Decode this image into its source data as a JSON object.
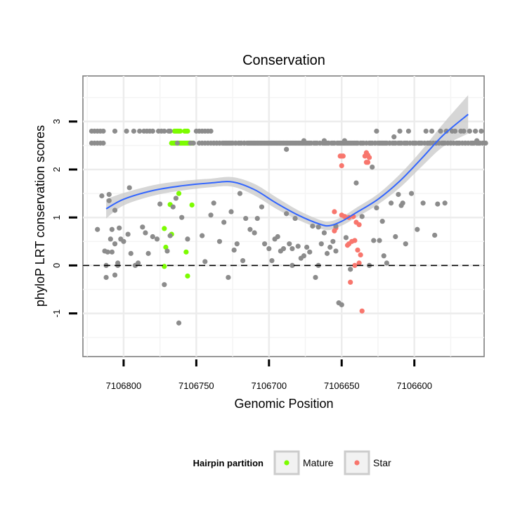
{
  "chart_data": {
    "type": "scatter",
    "title": "Conservation",
    "xlabel": "Genomic Position",
    "ylabel": "phyloP LRT conservation scores",
    "x_reversed": true,
    "xlim": [
      7106828,
      7106552
    ],
    "ylim": [
      -1.9,
      3.95
    ],
    "x_ticks": [
      7106800,
      7106750,
      7106700,
      7106650,
      7106600
    ],
    "y_ticks": [
      -1,
      0,
      1,
      2,
      3
    ],
    "y_tick_labels": [
      "-1",
      "0",
      "1",
      "2",
      "3"
    ],
    "grid": true,
    "reference_line": {
      "y": 0,
      "style": "dashed"
    },
    "legend": {
      "title": "Hairpin partition",
      "position": "bottom",
      "entries": [
        {
          "label": "Mature",
          "color": "#7CFC00"
        },
        {
          "label": "Star",
          "color": "#F8766D"
        }
      ]
    },
    "colors": {
      "other": "#8C8C8C",
      "mature": "#7CFC00",
      "star": "#F8766D",
      "smooth": "#3366FF",
      "ribbon": "#CCCCCC"
    },
    "smooth_line": {
      "x": [
        7106812,
        7106800,
        7106780,
        7106760,
        7106740,
        7106725,
        7106710,
        7106695,
        7106680,
        7106665,
        7106658,
        7106650,
        7106640,
        7106625,
        7106610,
        7106595,
        7106580,
        7106563
      ],
      "y": [
        1.18,
        1.38,
        1.56,
        1.66,
        1.72,
        1.74,
        1.58,
        1.3,
        1.05,
        0.86,
        0.83,
        0.92,
        1.1,
        1.38,
        1.76,
        2.23,
        2.72,
        3.15
      ],
      "lower": [
        0.98,
        1.25,
        1.45,
        1.56,
        1.63,
        1.64,
        1.46,
        1.18,
        0.95,
        0.77,
        0.74,
        0.83,
        1.0,
        1.27,
        1.62,
        2.06,
        2.48,
        2.75
      ],
      "upper": [
        1.38,
        1.51,
        1.67,
        1.76,
        1.81,
        1.84,
        1.7,
        1.42,
        1.15,
        0.95,
        0.92,
        1.01,
        1.2,
        1.49,
        1.9,
        2.4,
        2.96,
        3.55
      ]
    },
    "series": [
      {
        "name": "Mature",
        "x": [
          7106765,
          7106764,
          7106763,
          7106762,
          7106761,
          7106767,
          7106766,
          7106765,
          7106764,
          7106763,
          7106762,
          7106761,
          7106760,
          7106759,
          7106758,
          7106757,
          7106756,
          7106755,
          7106754,
          7106753,
          7106758,
          7106757,
          7106756,
          7106762,
          7106768,
          7106753,
          7106772,
          7106767,
          7106771,
          7106757,
          7106772,
          7106756
        ],
        "y": [
          2.8,
          2.8,
          2.8,
          2.8,
          2.8,
          2.55,
          2.55,
          2.55,
          2.55,
          2.55,
          2.55,
          2.55,
          2.55,
          2.55,
          2.55,
          2.55,
          2.55,
          2.55,
          2.55,
          2.55,
          2.8,
          2.8,
          2.8,
          1.5,
          1.27,
          1.26,
          0.77,
          0.65,
          0.38,
          0.28,
          -0.02,
          -0.22
        ]
      },
      {
        "name": "Star",
        "x": [
          7106651,
          7106650,
          7106649,
          7106650,
          7106633,
          7106632,
          7106634,
          7106631,
          7106633,
          7106632,
          7106655,
          7106650,
          7106648,
          7106645,
          7106642,
          7106640,
          7106638,
          7106641,
          7106643,
          7106645,
          7106646,
          7106639,
          7106637,
          7106654,
          7106655,
          7106638,
          7106644,
          7106641,
          7106636
        ],
        "y": [
          2.28,
          2.28,
          2.28,
          2.08,
          2.35,
          2.3,
          2.28,
          2.25,
          2.15,
          2.15,
          1.12,
          1.05,
          1.02,
          1.0,
          1.02,
          0.9,
          0.85,
          0.52,
          0.5,
          0.45,
          0.42,
          0.32,
          0.22,
          0.78,
          0.72,
          0.05,
          -0.35,
          0.0,
          -0.95
        ]
      },
      {
        "name": "",
        "x": [
          7106812,
          7106810,
          7106808,
          7106806,
          7106804,
          7106812,
          7106810,
          7106808,
          7106806,
          7106804,
          7106802,
          7106796,
          7106772,
          7106770,
          7106768,
          7106766,
          7106764,
          7106762,
          7106760,
          7106756,
          7106754,
          7106752,
          7106748,
          7106746,
          7106744,
          7106742,
          7106740,
          7106738,
          7106736,
          7106734,
          7106731,
          7106729,
          7106727,
          7106725,
          7106723,
          7106721,
          7106719,
          7106717,
          7106715,
          7106713,
          7106711,
          7106709,
          7106707,
          7106705,
          7106703,
          7106701,
          7106699,
          7106697,
          7106695,
          7106693,
          7106691,
          7106689,
          7106687,
          7106685,
          7106683,
          7106681,
          7106679,
          7106677,
          7106675,
          7106673,
          7106671,
          7106669,
          7106667,
          7106665,
          7106663,
          7106661,
          7106659,
          7106657,
          7106655,
          7106653,
          7106651,
          7106649,
          7106647,
          7106645,
          7106643,
          7106641,
          7106639,
          7106637,
          7106635,
          7106633,
          7106631,
          7106629,
          7106627,
          7106625,
          7106623,
          7106621,
          7106619,
          7106617,
          7106615,
          7106613,
          7106611,
          7106609,
          7106607,
          7106605,
          7106603,
          7106601,
          7106599,
          7106597,
          7106595,
          7106593,
          7106591,
          7106589,
          7106587,
          7106585,
          7106583,
          7106581,
          7106579,
          7106577,
          7106575,
          7106573,
          7106571,
          7106569,
          7106567,
          7106565,
          7106563,
          7106561,
          7106559,
          7106557,
          7106555,
          7106553,
          7106551
        ],
        "y": [
          0.0,
          1.48,
          0.28,
          0.45,
          0.05,
          -0.25,
          1.35,
          0.75,
          -0.2,
          0.0,
          0.55,
          1.62,
          -0.4,
          0.3,
          0.62,
          1.22,
          1.4,
          -1.2,
          1.0,
          0.55,
          2.55,
          2.55,
          2.55,
          2.55,
          2.55,
          2.55,
          2.55,
          2.55,
          2.55,
          2.55,
          2.55,
          2.55,
          2.55,
          2.55,
          2.55,
          2.55,
          2.55,
          2.55,
          2.55,
          2.55,
          2.55,
          2.55,
          2.55,
          2.55,
          2.55,
          2.55,
          2.55,
          2.55,
          2.55,
          2.55,
          2.55,
          2.55,
          2.55,
          2.55,
          2.55,
          2.55,
          2.55,
          2.55,
          2.55,
          2.55,
          2.55,
          2.55,
          2.55,
          2.55,
          2.55,
          2.55,
          2.55,
          2.55,
          2.55,
          2.55,
          2.55,
          2.55,
          2.55,
          2.55,
          2.55,
          2.55,
          2.55,
          2.55,
          2.55,
          2.55,
          2.55,
          2.55,
          2.55,
          2.55,
          2.55,
          2.55,
          2.55,
          2.55,
          2.55,
          2.55,
          2.55,
          2.55,
          2.55,
          2.55,
          2.55,
          2.55,
          2.55,
          2.55,
          2.55,
          2.55,
          2.55,
          2.55,
          2.55,
          2.55,
          2.55,
          2.55,
          2.55,
          2.55,
          2.55,
          2.55,
          2.55,
          2.55,
          2.55,
          2.55,
          2.55,
          2.55,
          2.55,
          2.55,
          2.55,
          2.55,
          2.55
        ]
      },
      {
        "name": "",
        "x": [
          7106822,
          7106820,
          7106818,
          7106816,
          7106814,
          7106822,
          7106820,
          7106818,
          7106816,
          7106814,
          7106806,
          7106798,
          7106793,
          7106789,
          7106786,
          7106784,
          7106782,
          7106780,
          7106776,
          7106774,
          7106772,
          7106769,
          7106768,
          7106763,
          7106750,
          7106748,
          7106746,
          7106744,
          7106742,
          7106740,
          7106738,
          7106736,
          7106734,
          7106732,
          7106730,
          7106728,
          7106726,
          7106723,
          7106720,
          7106717,
          7106714,
          7106712,
          7106710,
          7106708,
          7106706,
          7106704,
          7106702,
          7106700,
          7106698,
          7106696,
          7106694,
          7106692,
          7106690,
          7106688,
          7106686,
          7106684,
          7106682,
          7106680,
          7106678,
          7106676,
          7106674,
          7106672,
          7106668,
          7106662,
          7106660,
          7106656,
          7106652,
          7106650,
          7106648,
          7106646,
          7106644,
          7106642,
          7106640,
          7106636,
          7106630,
          7106627,
          7106624,
          7106622,
          7106620,
          7106617,
          7106614,
          7106610,
          7106606,
          7106600,
          7106596,
          7106590,
          7106585,
          7106580,
          7106575,
          7106570,
          7106565,
          7106560,
          7106556,
          7106572,
          7106568,
          7106626,
          7106610,
          7106604,
          7106592,
          7106588,
          7106582,
          7106578,
          7106574,
          7106566,
          7106562,
          7106558,
          7106554
        ],
        "y": [
          2.8,
          2.8,
          2.8,
          2.8,
          2.8,
          2.55,
          2.55,
          2.55,
          2.55,
          2.55,
          2.8,
          2.8,
          2.8,
          2.8,
          2.8,
          2.8,
          2.8,
          2.8,
          2.8,
          2.8,
          2.8,
          2.8,
          2.8,
          2.55,
          2.8,
          2.8,
          2.8,
          2.8,
          2.8,
          2.8,
          2.55,
          2.55,
          2.55,
          2.55,
          2.55,
          2.55,
          2.55,
          2.55,
          2.55,
          2.55,
          2.55,
          2.55,
          2.55,
          2.55,
          2.55,
          2.55,
          2.55,
          2.55,
          2.55,
          2.55,
          2.55,
          2.55,
          2.55,
          2.55,
          2.55,
          2.55,
          2.55,
          2.55,
          2.55,
          2.55,
          2.55,
          2.55,
          2.55,
          2.55,
          2.55,
          2.55,
          2.55,
          2.55,
          2.55,
          2.55,
          2.55,
          2.55,
          2.55,
          2.55,
          2.55,
          2.55,
          2.55,
          2.55,
          2.55,
          2.55,
          2.55,
          2.55,
          2.55,
          2.55,
          2.55,
          2.55,
          2.55,
          2.55,
          2.55,
          2.55,
          2.55,
          2.55,
          2.55,
          2.8,
          2.8,
          2.8,
          2.8,
          2.8,
          2.8,
          2.8,
          2.8,
          2.8,
          2.8,
          2.8,
          2.8,
          2.8,
          2.8
        ]
      },
      {
        "name": "",
        "x": [
          7106818,
          7106815,
          7106813,
          7106811,
          7106809,
          7106806,
          7106803,
          7106800,
          7106797,
          7106795,
          7106792,
          7106790,
          7106787,
          7106785,
          7106783,
          7106780,
          7106777,
          7106775,
          7106746,
          7106744,
          7106740,
          7106738,
          7106734,
          7106731,
          7106728,
          7106726,
          7106724,
          7106722,
          7106720,
          7106718,
          7106716,
          7106713,
          7106710,
          7106708,
          7106705,
          7106703,
          7106700,
          7106698,
          7106696,
          7106694,
          7106692,
          7106690,
          7106688,
          7106686,
          7106684,
          7106682,
          7106680,
          7106678,
          7106676,
          7106674,
          7106672,
          7106670,
          7106668,
          7106666,
          7106664,
          7106662,
          7106660,
          7106658,
          7106656,
          7106654,
          7106652,
          7106650,
          7106647,
          7106631,
          7106629,
          7106626,
          7106624,
          7106621,
          7106619,
          7106616,
          7106613,
          7106611,
          7106609,
          7106606,
          7106598,
          7106594
        ],
        "y": [
          0.75,
          1.45,
          0.3,
          0.28,
          0.55,
          1.15,
          0.78,
          0.5,
          0.65,
          0.25,
          0.0,
          0.05,
          0.8,
          0.68,
          0.25,
          0.6,
          0.55,
          1.28,
          0.62,
          0.08,
          1.05,
          1.3,
          0.5,
          0.9,
          -0.25,
          1.12,
          0.32,
          0.45,
          1.5,
          0.1,
          0.98,
          0.75,
          0.68,
          0.98,
          1.22,
          0.45,
          0.35,
          0.1,
          0.55,
          0.6,
          0.3,
          0.35,
          1.08,
          0.45,
          0.0,
          0.98,
          0.4,
          0.15,
          0.2,
          0.38,
          0.28,
          0.82,
          -0.25,
          0.8,
          0.45,
          0.68,
          0.25,
          0.38,
          0.5,
          0.3,
          -0.78,
          -0.82,
          0.58,
          0.0,
          2.05,
          1.2,
          0.52,
          0.2,
          0.05,
          1.3,
          0.6,
          1.48,
          1.25,
          0.45,
          0.75,
          1.3
        ]
      },
      {
        "name": "",
        "x": [
          7106688,
          7106684,
          7106676,
          7106662,
          7106654,
          7106648,
          7106644,
          7106640,
          7106636,
          7106628,
          7106622,
          7106614,
          7106608,
          7106602,
          7106586,
          7106584,
          7106579,
          7106557,
          7106555,
          7106666
        ],
        "y": [
          2.42,
          0.35,
          2.6,
          2.6,
          0.82,
          2.6,
          -0.08,
          1.72,
          1.02,
          0.52,
          0.92,
          2.68,
          1.3,
          1.5,
          0.63,
          1.28,
          1.3,
          2.6,
          2.55,
          0.0
        ]
      }
    ]
  }
}
